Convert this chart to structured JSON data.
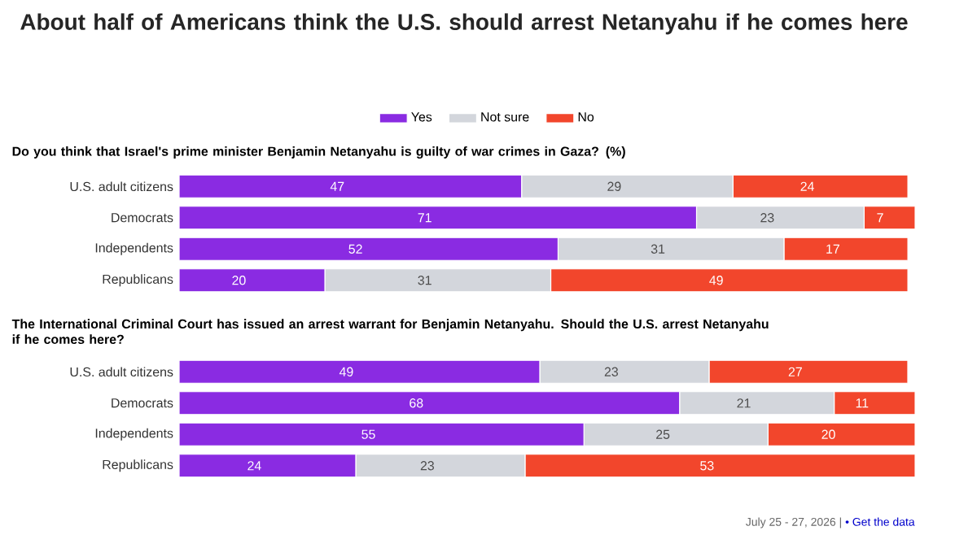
{
  "chart_data": [
    {
      "type": "bar",
      "orientation": "horizontal",
      "stacked": true,
      "data_labels": true,
      "legend": "top",
      "tick_labels": "y",
      "title": "About half of Americans think the U.S. should arrest Netanyahu if he comes here",
      "subtitle": "Do you think that Israel's prime minister Benjamin Netanyahu is guilty of war crimes in Gaza? (%)",
      "categories": [
        "U.S. adult citizens",
        "Democrats",
        "Independents",
        "Republicans"
      ],
      "series": [
        {
          "name": "Yes",
          "color": "#8a2be2",
          "values": [
            47,
            71,
            52,
            20
          ]
        },
        {
          "name": "Not sure",
          "color": "#d3d6dc",
          "values": [
            29,
            23,
            31,
            31
          ]
        },
        {
          "name": "No",
          "color": "#f2462c",
          "values": [
            24,
            7,
            17,
            49
          ]
        }
      ]
    },
    {
      "type": "bar",
      "orientation": "horizontal",
      "stacked": true,
      "data_labels": true,
      "tick_labels": "y",
      "title": "The International Criminal Court has issued an arrest warrant for Benjamin Netanyahu. Should the U.S. arrest Netanyahu if he comes here?",
      "categories": [
        "U.S. adult citizens",
        "Democrats",
        "Independents",
        "Republicans"
      ],
      "series": [
        {
          "color": "#8a2be2",
          "values": [
            49,
            68,
            55,
            24
          ]
        },
        {
          "color": "#d3d6dc",
          "values": [
            23,
            21,
            25,
            23
          ]
        },
        {
          "color": "#f2462c",
          "values": [
            27,
            11,
            20,
            53
          ]
        }
      ],
      "annotations": [
        "July 25 - 27, 2026 |",
        "• Get the data"
      ]
    }
  ]
}
